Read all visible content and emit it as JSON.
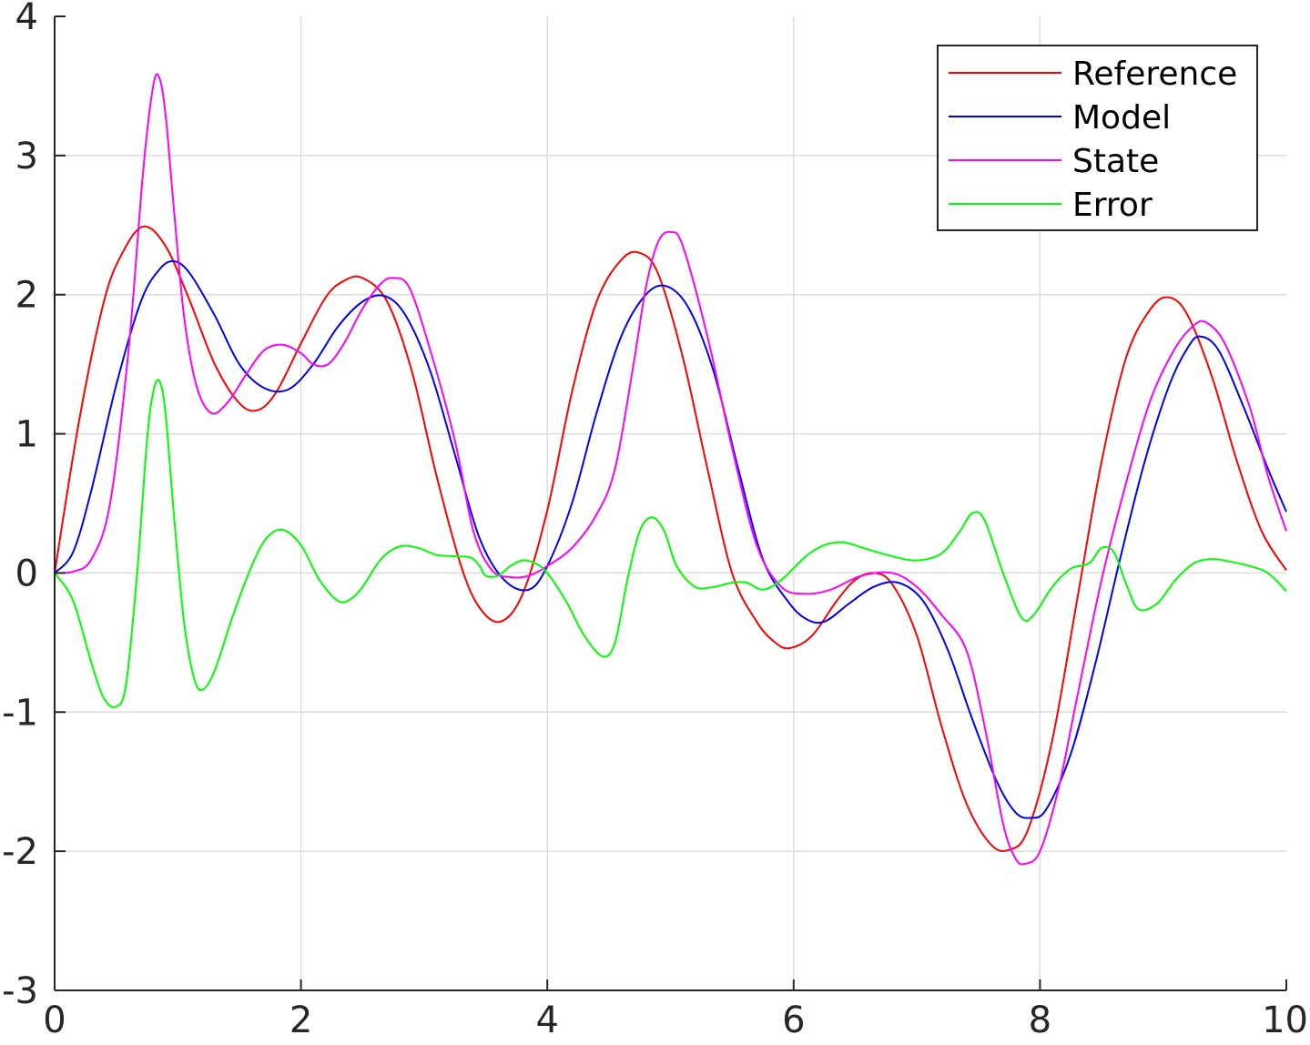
{
  "chart_data": {
    "type": "line",
    "xlim": [
      0,
      10
    ],
    "ylim": [
      -3,
      4
    ],
    "xticks": [
      0,
      2,
      4,
      6,
      8,
      10
    ],
    "yticks": [
      -3,
      -2,
      -1,
      0,
      1,
      2,
      3,
      4
    ],
    "grid": true,
    "legend_position": "top-right",
    "series": [
      {
        "name": "Reference",
        "color": "#ff0000",
        "x": [
          0,
          0.2,
          0.4,
          0.55,
          0.72,
          0.9,
          1.1,
          1.3,
          1.5,
          1.65,
          1.8,
          2.0,
          2.2,
          2.35,
          2.5,
          2.7,
          2.9,
          3.1,
          3.3,
          3.45,
          3.62,
          3.8,
          4.0,
          4.2,
          4.4,
          4.6,
          4.75,
          4.9,
          5.1,
          5.3,
          5.5,
          5.7,
          5.85,
          5.97,
          6.15,
          6.35,
          6.5,
          6.65,
          6.8,
          7.0,
          7.2,
          7.4,
          7.6,
          7.75,
          7.9,
          8.1,
          8.3,
          8.5,
          8.7,
          8.9,
          9.05,
          9.2,
          9.4,
          9.6,
          9.8,
          10.0
        ],
        "y": [
          0,
          1.1,
          1.95,
          2.3,
          2.49,
          2.35,
          1.95,
          1.5,
          1.22,
          1.17,
          1.3,
          1.65,
          1.98,
          2.1,
          2.12,
          1.95,
          1.45,
          0.7,
          0.05,
          -0.25,
          -0.35,
          -0.15,
          0.45,
          1.3,
          1.95,
          2.25,
          2.3,
          2.15,
          1.55,
          0.75,
          0.0,
          -0.35,
          -0.5,
          -0.54,
          -0.45,
          -0.2,
          -0.05,
          0.0,
          -0.08,
          -0.45,
          -1.1,
          -1.65,
          -1.95,
          -1.99,
          -1.85,
          -1.2,
          -0.2,
          0.8,
          1.55,
          1.9,
          1.98,
          1.85,
          1.4,
          0.8,
          0.3,
          0.02
        ]
      },
      {
        "name": "Model",
        "color": "#0000ff",
        "x": [
          0,
          0.15,
          0.3,
          0.5,
          0.7,
          0.85,
          0.97,
          1.1,
          1.3,
          1.5,
          1.7,
          1.9,
          2.1,
          2.3,
          2.5,
          2.68,
          2.85,
          3.05,
          3.25,
          3.45,
          3.65,
          3.85,
          4.0,
          4.2,
          4.4,
          4.6,
          4.8,
          4.97,
          5.15,
          5.35,
          5.55,
          5.75,
          5.95,
          6.1,
          6.25,
          6.45,
          6.65,
          6.85,
          7.05,
          7.25,
          7.45,
          7.65,
          7.8,
          7.92,
          8.05,
          8.25,
          8.45,
          8.65,
          8.85,
          9.05,
          9.2,
          9.3,
          9.45,
          9.65,
          9.85,
          10.0
        ],
        "y": [
          0,
          0.15,
          0.6,
          1.35,
          1.95,
          2.18,
          2.24,
          2.15,
          1.85,
          1.5,
          1.33,
          1.32,
          1.5,
          1.77,
          1.95,
          1.99,
          1.85,
          1.45,
          0.85,
          0.25,
          -0.05,
          -0.12,
          0.05,
          0.5,
          1.15,
          1.7,
          2.0,
          2.06,
          1.9,
          1.45,
          0.75,
          0.1,
          -0.2,
          -0.33,
          -0.35,
          -0.22,
          -0.1,
          -0.07,
          -0.2,
          -0.55,
          -1.05,
          -1.5,
          -1.72,
          -1.76,
          -1.7,
          -1.3,
          -0.65,
          0.1,
          0.8,
          1.35,
          1.62,
          1.7,
          1.6,
          1.2,
          0.75,
          0.44
        ]
      },
      {
        "name": "State",
        "color": "#ff00ff",
        "x": [
          0,
          0.15,
          0.3,
          0.45,
          0.6,
          0.72,
          0.8,
          0.85,
          0.9,
          0.97,
          1.05,
          1.15,
          1.27,
          1.4,
          1.55,
          1.7,
          1.85,
          2.0,
          2.1,
          2.22,
          2.35,
          2.5,
          2.65,
          2.75,
          2.88,
          3.05,
          3.25,
          3.4,
          3.55,
          3.7,
          3.85,
          4.0,
          4.2,
          4.4,
          4.55,
          4.7,
          4.8,
          4.9,
          5.0,
          5.1,
          5.3,
          5.5,
          5.7,
          5.9,
          6.1,
          6.3,
          6.55,
          6.8,
          7.0,
          7.2,
          7.4,
          7.55,
          7.7,
          7.8,
          7.88,
          8.0,
          8.15,
          8.3,
          8.5,
          8.7,
          8.9,
          9.1,
          9.25,
          9.35,
          9.5,
          9.7,
          9.85,
          10.0
        ],
        "y": [
          0,
          0.01,
          0.1,
          0.5,
          1.6,
          2.9,
          3.5,
          3.56,
          3.3,
          2.6,
          1.85,
          1.35,
          1.15,
          1.22,
          1.42,
          1.6,
          1.64,
          1.58,
          1.5,
          1.5,
          1.65,
          1.9,
          2.08,
          2.12,
          2.05,
          1.6,
          0.95,
          0.3,
          0.02,
          -0.03,
          -0.02,
          0.05,
          0.18,
          0.42,
          0.75,
          1.5,
          2.05,
          2.38,
          2.45,
          2.35,
          1.7,
          0.9,
          0.2,
          -0.1,
          -0.15,
          -0.12,
          -0.02,
          0.0,
          -0.1,
          -0.3,
          -0.55,
          -1.1,
          -1.8,
          -2.05,
          -2.09,
          -2.0,
          -1.55,
          -0.9,
          -0.05,
          0.65,
          1.25,
          1.62,
          1.78,
          1.8,
          1.65,
          1.2,
          0.7,
          0.3
        ]
      },
      {
        "name": "Error",
        "color": "#00ff00",
        "x": [
          0,
          0.15,
          0.3,
          0.4,
          0.5,
          0.58,
          0.67,
          0.75,
          0.8,
          0.85,
          0.9,
          0.97,
          1.05,
          1.13,
          1.2,
          1.3,
          1.45,
          1.6,
          1.72,
          1.85,
          2.0,
          2.15,
          2.3,
          2.4,
          2.5,
          2.65,
          2.8,
          2.95,
          3.1,
          3.25,
          3.38,
          3.45,
          3.5,
          3.6,
          3.7,
          3.8,
          3.9,
          4.0,
          4.15,
          4.3,
          4.45,
          4.55,
          4.65,
          4.75,
          4.85,
          4.95,
          5.05,
          5.2,
          5.35,
          5.5,
          5.62,
          5.75,
          5.9,
          6.1,
          6.25,
          6.4,
          6.6,
          6.8,
          7.0,
          7.2,
          7.35,
          7.45,
          7.55,
          7.7,
          7.85,
          7.95,
          8.1,
          8.25,
          8.4,
          8.5,
          8.6,
          8.7,
          8.8,
          8.95,
          9.1,
          9.25,
          9.4,
          9.55,
          9.7,
          9.85,
          10.0
        ],
        "y": [
          0,
          -0.2,
          -0.65,
          -0.9,
          -0.96,
          -0.8,
          0.0,
          0.95,
          1.3,
          1.38,
          1.15,
          0.4,
          -0.35,
          -0.75,
          -0.84,
          -0.7,
          -0.3,
          0.05,
          0.25,
          0.31,
          0.2,
          -0.05,
          -0.2,
          -0.19,
          -0.1,
          0.1,
          0.19,
          0.18,
          0.13,
          0.12,
          0.11,
          0.05,
          -0.02,
          -0.02,
          0.05,
          0.09,
          0.07,
          0.0,
          -0.2,
          -0.45,
          -0.6,
          -0.5,
          -0.05,
          0.3,
          0.4,
          0.3,
          0.05,
          -0.1,
          -0.1,
          -0.07,
          -0.07,
          -0.12,
          -0.05,
          0.12,
          0.2,
          0.22,
          0.17,
          0.12,
          0.09,
          0.14,
          0.3,
          0.43,
          0.38,
          0.0,
          -0.32,
          -0.3,
          -0.1,
          0.03,
          0.07,
          0.18,
          0.15,
          -0.08,
          -0.26,
          -0.22,
          -0.05,
          0.07,
          0.1,
          0.08,
          0.05,
          0.0,
          -0.13
        ]
      }
    ]
  }
}
